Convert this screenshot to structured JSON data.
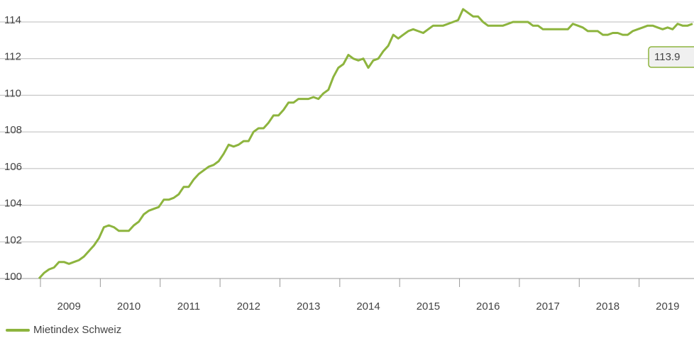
{
  "chart_data": {
    "type": "line",
    "categories": [
      null,
      null,
      null,
      null,
      null,
      null,
      null,
      null,
      null,
      null,
      null,
      null,
      null,
      null,
      null,
      null,
      null,
      null,
      null,
      null,
      null,
      null,
      null,
      null,
      null,
      null,
      null,
      null,
      null,
      null,
      null,
      null,
      null,
      null,
      null,
      null,
      null,
      null,
      null,
      null,
      null,
      null,
      null,
      null,
      null,
      null,
      null,
      null,
      null,
      null,
      null,
      null,
      null,
      null,
      null,
      null,
      null,
      null,
      null,
      null,
      null,
      null,
      null,
      null,
      null,
      null,
      null,
      null,
      null,
      null,
      null,
      null,
      null,
      null,
      null,
      null,
      null,
      null,
      null,
      null,
      null,
      null,
      null,
      null,
      null,
      null,
      null,
      null,
      null,
      null,
      null,
      null,
      null,
      null,
      null,
      null,
      null,
      null,
      null,
      null,
      null,
      null,
      null,
      null,
      null,
      null,
      null,
      null,
      null,
      null,
      null,
      null,
      null,
      null,
      null,
      null,
      null,
      null,
      null,
      null,
      null,
      null,
      null,
      null,
      null,
      null,
      null,
      null,
      null,
      null,
      null,
      null
    ],
    "year_labels": [
      "2009",
      "2010",
      "2011",
      "2012",
      "2013",
      "2014",
      "2015",
      "2016",
      "2017",
      "2018",
      "2019"
    ],
    "series": [
      {
        "name": "Mietindex Schweiz",
        "color": "#8db43e",
        "values": [
          100.0,
          100.3,
          100.5,
          100.6,
          100.9,
          100.9,
          100.8,
          100.9,
          101.0,
          101.2,
          101.5,
          101.8,
          102.2,
          102.8,
          102.9,
          102.8,
          102.6,
          102.6,
          102.6,
          102.9,
          103.1,
          103.5,
          103.7,
          103.8,
          103.9,
          104.3,
          104.3,
          104.4,
          104.6,
          105.0,
          105.0,
          105.4,
          105.7,
          105.9,
          106.1,
          106.2,
          106.4,
          106.8,
          107.3,
          107.2,
          107.3,
          107.5,
          107.5,
          108.0,
          108.2,
          108.2,
          108.5,
          108.9,
          108.9,
          109.2,
          109.6,
          109.6,
          109.8,
          109.8,
          109.8,
          109.9,
          109.8,
          110.1,
          110.3,
          111.0,
          111.5,
          111.7,
          112.2,
          112.0,
          111.9,
          112.0,
          111.5,
          111.9,
          112.0,
          112.4,
          112.7,
          113.3,
          113.1,
          113.3,
          113.5,
          113.6,
          113.5,
          113.4,
          113.6,
          113.8,
          113.8,
          113.8,
          113.9,
          114.0,
          114.1,
          114.7,
          114.5,
          114.3,
          114.3,
          114.0,
          113.8,
          113.8,
          113.8,
          113.8,
          113.9,
          114.0,
          114.0,
          114.0,
          114.0,
          113.8,
          113.8,
          113.6,
          113.6,
          113.6,
          113.6,
          113.6,
          113.6,
          113.9,
          113.8,
          113.7,
          113.5,
          113.5,
          113.5,
          113.3,
          113.3,
          113.4,
          113.4,
          113.3,
          113.3,
          113.5,
          113.6,
          113.7,
          113.8,
          113.8,
          113.7,
          113.6,
          113.7,
          113.6,
          113.9,
          113.8,
          113.8,
          113.9
        ]
      }
    ],
    "annotation": "113.9",
    "ylim": [
      100,
      114
    ],
    "yticks": [
      100,
      102,
      104,
      106,
      108,
      110,
      112,
      114
    ],
    "grid": true,
    "legend": "bottom-left"
  }
}
